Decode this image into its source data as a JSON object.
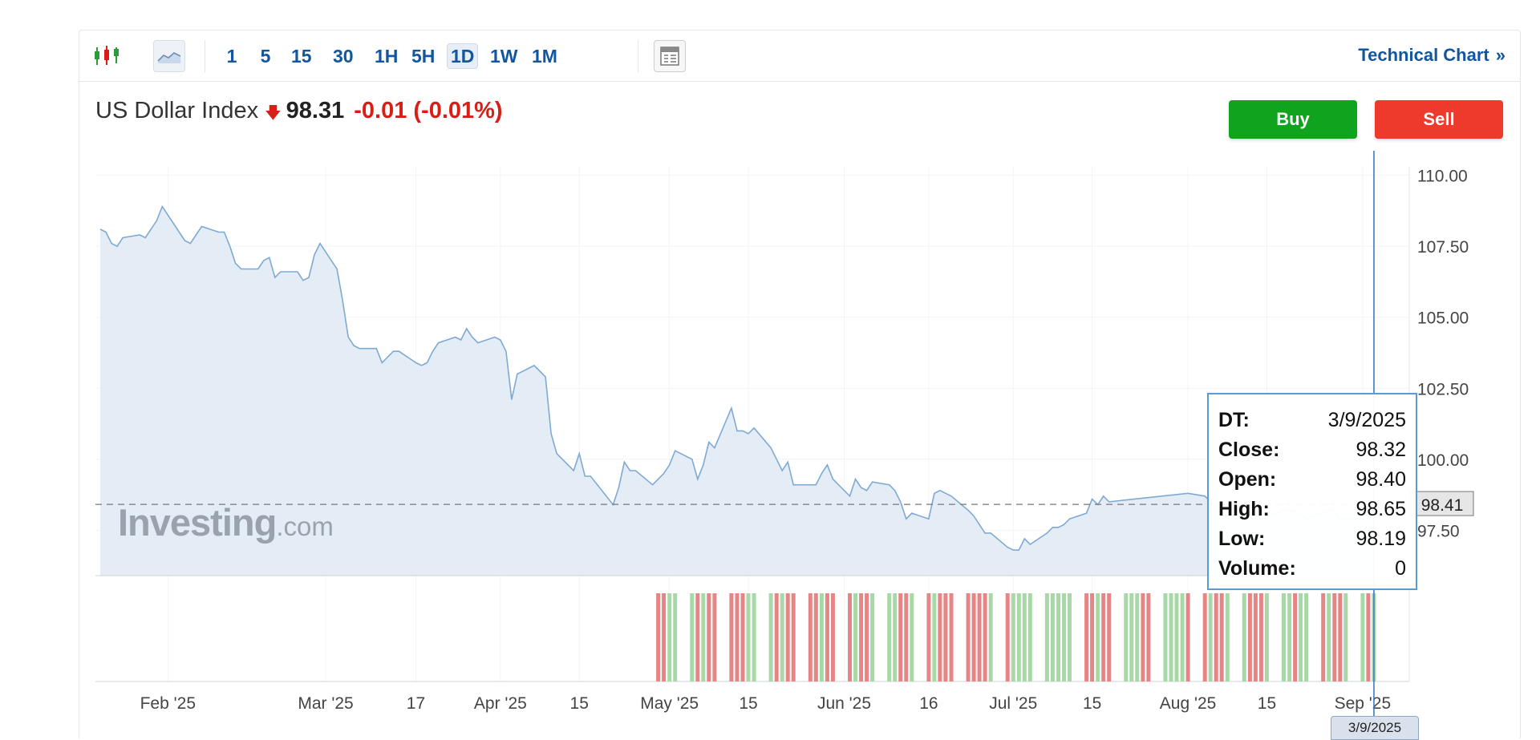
{
  "toolbar": {
    "chart_type_icons": [
      "candlestick-icon",
      "area-chart-icon"
    ],
    "intervals": [
      "1",
      "5",
      "15",
      "30",
      "1H",
      "5H",
      "1D",
      "1W",
      "1M"
    ],
    "active_interval": "1D",
    "layout_icon": "panel-layout-icon",
    "technical_chart_label": "Technical Chart",
    "technical_chart_chevron": "»"
  },
  "quote": {
    "name": "US Dollar Index",
    "direction_icon": "down-arrow-icon",
    "price": "98.31",
    "change": "-0.01 (-0.01%)"
  },
  "buttons": {
    "buy": "Buy",
    "sell": "Sell"
  },
  "tooltip": {
    "rows": [
      {
        "key": "DT:",
        "value": "3/9/2025"
      },
      {
        "key": "Close:",
        "value": "98.32"
      },
      {
        "key": "Open:",
        "value": "98.40"
      },
      {
        "key": "High:",
        "value": "98.65"
      },
      {
        "key": "Low:",
        "value": "98.19"
      },
      {
        "key": "Volume:",
        "value": "0"
      }
    ]
  },
  "watermark": {
    "brand": "Investing",
    "domain": ".com"
  },
  "last_price_label": "98.41",
  "crosshair_date": "3/9/2025",
  "colors": {
    "accent": "#1256a0",
    "down": "#d91e18",
    "buy": "#10a41e",
    "sell": "#ee3a2d",
    "area_line": "#7fa9d3",
    "area_fill": "#e4edf6",
    "volume_up": "#a8d8a8",
    "volume_down": "#e58585"
  },
  "chart_data": {
    "type": "area",
    "title": "US Dollar Index",
    "ylim": [
      95.9,
      110.3
    ],
    "y_ticks": [
      110.0,
      107.5,
      105.0,
      102.5,
      100.0,
      97.5
    ],
    "y_tick_labels": [
      "110.00",
      "107.50",
      "105.00",
      "102.50",
      "100.00",
      "97.50"
    ],
    "x_ticks": [
      "Feb '25",
      "Mar '25",
      "17",
      "Apr '25",
      "15",
      "May '25",
      "15",
      "Jun '25",
      "16",
      "Jul '25",
      "15",
      "Aug '25",
      "15",
      "Sep '25"
    ],
    "x_tick_dates": [
      "2025-02-01",
      "2025-03-01",
      "2025-03-17",
      "2025-04-01",
      "2025-04-15",
      "2025-05-01",
      "2025-05-15",
      "2025-06-01",
      "2025-06-16",
      "2025-07-01",
      "2025-07-15",
      "2025-08-01",
      "2025-08-15",
      "2025-09-01"
    ],
    "x_range": [
      "2025-01-20",
      "2025-09-05"
    ],
    "reference_line": 98.41,
    "series": [
      {
        "values": [
          [
            "2025-01-20",
            108.1
          ],
          [
            "2025-01-21",
            108.0
          ],
          [
            "2025-01-22",
            107.6
          ],
          [
            "2025-01-23",
            107.5
          ],
          [
            "2025-01-24",
            107.8
          ],
          [
            "2025-01-27",
            107.9
          ],
          [
            "2025-01-28",
            107.8
          ],
          [
            "2025-01-29",
            108.1
          ],
          [
            "2025-01-30",
            108.4
          ],
          [
            "2025-01-31",
            108.9
          ],
          [
            "2025-02-03",
            108.0
          ],
          [
            "2025-02-04",
            107.7
          ],
          [
            "2025-02-05",
            107.6
          ],
          [
            "2025-02-06",
            107.9
          ],
          [
            "2025-02-07",
            108.2
          ],
          [
            "2025-02-10",
            108.0
          ],
          [
            "2025-02-11",
            108.0
          ],
          [
            "2025-02-12",
            107.5
          ],
          [
            "2025-02-13",
            106.9
          ],
          [
            "2025-02-14",
            106.7
          ],
          [
            "2025-02-17",
            106.7
          ],
          [
            "2025-02-18",
            107.0
          ],
          [
            "2025-02-19",
            107.1
          ],
          [
            "2025-02-20",
            106.4
          ],
          [
            "2025-02-21",
            106.6
          ],
          [
            "2025-02-24",
            106.6
          ],
          [
            "2025-02-25",
            106.3
          ],
          [
            "2025-02-26",
            106.4
          ],
          [
            "2025-02-27",
            107.2
          ],
          [
            "2025-02-28",
            107.6
          ],
          [
            "2025-03-03",
            106.7
          ],
          [
            "2025-03-04",
            105.6
          ],
          [
            "2025-03-05",
            104.3
          ],
          [
            "2025-03-06",
            104.0
          ],
          [
            "2025-03-07",
            103.9
          ],
          [
            "2025-03-10",
            103.9
          ],
          [
            "2025-03-11",
            103.4
          ],
          [
            "2025-03-12",
            103.6
          ],
          [
            "2025-03-13",
            103.8
          ],
          [
            "2025-03-14",
            103.8
          ],
          [
            "2025-03-17",
            103.4
          ],
          [
            "2025-03-18",
            103.3
          ],
          [
            "2025-03-19",
            103.4
          ],
          [
            "2025-03-20",
            103.8
          ],
          [
            "2025-03-21",
            104.1
          ],
          [
            "2025-03-24",
            104.3
          ],
          [
            "2025-03-25",
            104.2
          ],
          [
            "2025-03-26",
            104.6
          ],
          [
            "2025-03-27",
            104.3
          ],
          [
            "2025-03-28",
            104.1
          ],
          [
            "2025-03-31",
            104.3
          ],
          [
            "2025-04-01",
            104.2
          ],
          [
            "2025-04-02",
            103.8
          ],
          [
            "2025-04-03",
            102.1
          ],
          [
            "2025-04-04",
            103.0
          ],
          [
            "2025-04-07",
            103.3
          ],
          [
            "2025-04-08",
            103.1
          ],
          [
            "2025-04-09",
            102.9
          ],
          [
            "2025-04-10",
            100.9
          ],
          [
            "2025-04-11",
            100.2
          ],
          [
            "2025-04-14",
            99.6
          ],
          [
            "2025-04-15",
            100.2
          ],
          [
            "2025-04-16",
            99.4
          ],
          [
            "2025-04-17",
            99.4
          ],
          [
            "2025-04-21",
            98.4
          ],
          [
            "2025-04-22",
            99.0
          ],
          [
            "2025-04-23",
            99.9
          ],
          [
            "2025-04-24",
            99.6
          ],
          [
            "2025-04-25",
            99.6
          ],
          [
            "2025-04-28",
            99.1
          ],
          [
            "2025-04-29",
            99.3
          ],
          [
            "2025-04-30",
            99.5
          ],
          [
            "2025-05-01",
            99.8
          ],
          [
            "2025-05-02",
            100.3
          ],
          [
            "2025-05-05",
            100.0
          ],
          [
            "2025-05-06",
            99.3
          ],
          [
            "2025-05-07",
            99.8
          ],
          [
            "2025-05-08",
            100.6
          ],
          [
            "2025-05-09",
            100.4
          ],
          [
            "2025-05-12",
            101.8
          ],
          [
            "2025-05-13",
            101.0
          ],
          [
            "2025-05-14",
            101.0
          ],
          [
            "2025-05-15",
            100.9
          ],
          [
            "2025-05-16",
            101.1
          ],
          [
            "2025-05-19",
            100.4
          ],
          [
            "2025-05-20",
            100.0
          ],
          [
            "2025-05-21",
            99.6
          ],
          [
            "2025-05-22",
            99.9
          ],
          [
            "2025-05-23",
            99.1
          ],
          [
            "2025-05-27",
            99.1
          ],
          [
            "2025-05-28",
            99.5
          ],
          [
            "2025-05-29",
            99.8
          ],
          [
            "2025-05-30",
            99.3
          ],
          [
            "2025-06-02",
            98.7
          ],
          [
            "2025-06-03",
            99.3
          ],
          [
            "2025-06-04",
            99.0
          ],
          [
            "2025-06-05",
            98.9
          ],
          [
            "2025-06-06",
            99.2
          ],
          [
            "2025-06-09",
            99.1
          ],
          [
            "2025-06-10",
            98.9
          ],
          [
            "2025-06-11",
            98.5
          ],
          [
            "2025-06-12",
            97.9
          ],
          [
            "2025-06-13",
            98.1
          ],
          [
            "2025-06-16",
            97.9
          ],
          [
            "2025-06-17",
            98.8
          ],
          [
            "2025-06-18",
            98.9
          ],
          [
            "2025-06-19",
            98.8
          ],
          [
            "2025-06-20",
            98.7
          ],
          [
            "2025-06-23",
            98.2
          ],
          [
            "2025-06-24",
            98.0
          ],
          [
            "2025-06-25",
            97.7
          ],
          [
            "2025-06-26",
            97.4
          ],
          [
            "2025-06-27",
            97.4
          ],
          [
            "2025-06-30",
            96.9
          ],
          [
            "2025-07-01",
            96.8
          ],
          [
            "2025-07-02",
            96.8
          ],
          [
            "2025-07-03",
            97.2
          ],
          [
            "2025-07-04",
            97.0
          ],
          [
            "2025-07-07",
            97.4
          ],
          [
            "2025-07-08",
            97.6
          ],
          [
            "2025-07-09",
            97.6
          ],
          [
            "2025-07-10",
            97.7
          ],
          [
            "2025-07-11",
            97.9
          ],
          [
            "2025-07-14",
            98.1
          ],
          [
            "2025-07-15",
            98.6
          ],
          [
            "2025-07-16",
            98.4
          ],
          [
            "2025-07-17",
            98.7
          ],
          [
            "2025-07-18",
            98.5
          ],
          [
            "2025-08-01",
            98.8
          ],
          [
            "2025-08-04",
            98.7
          ],
          [
            "2025-08-06",
            98.3
          ],
          [
            "2025-08-08",
            98.2
          ],
          [
            "2025-08-12",
            98.1
          ],
          [
            "2025-08-14",
            97.9
          ],
          [
            "2025-08-18",
            98.2
          ],
          [
            "2025-08-20",
            98.2
          ],
          [
            "2025-08-22",
            97.9
          ],
          [
            "2025-08-26",
            98.2
          ],
          [
            "2025-08-27",
            98.2
          ],
          [
            "2025-08-28",
            97.9
          ],
          [
            "2025-08-29",
            97.9
          ],
          [
            "2025-09-01",
            97.9
          ],
          [
            "2025-09-02",
            98.3
          ],
          [
            "2025-09-03",
            98.41
          ]
        ]
      }
    ],
    "volume_bars": [
      [
        "2025-04-29",
        "down"
      ],
      [
        "2025-04-30",
        "down"
      ],
      [
        "2025-05-01",
        "up"
      ],
      [
        "2025-05-02",
        "up"
      ],
      [
        "2025-05-05",
        "up"
      ],
      [
        "2025-05-06",
        "down"
      ],
      [
        "2025-05-07",
        "up"
      ],
      [
        "2025-05-08",
        "down"
      ],
      [
        "2025-05-09",
        "down"
      ],
      [
        "2025-05-12",
        "down"
      ],
      [
        "2025-05-13",
        "down"
      ],
      [
        "2025-05-14",
        "down"
      ],
      [
        "2025-05-15",
        "up"
      ],
      [
        "2025-05-16",
        "up"
      ],
      [
        "2025-05-19",
        "up"
      ],
      [
        "2025-05-20",
        "down"
      ],
      [
        "2025-05-21",
        "up"
      ],
      [
        "2025-05-22",
        "down"
      ],
      [
        "2025-05-23",
        "down"
      ],
      [
        "2025-05-26",
        "down"
      ],
      [
        "2025-05-27",
        "down"
      ],
      [
        "2025-05-28",
        "up"
      ],
      [
        "2025-05-29",
        "down"
      ],
      [
        "2025-05-30",
        "down"
      ],
      [
        "2025-06-02",
        "down"
      ],
      [
        "2025-06-03",
        "up"
      ],
      [
        "2025-06-04",
        "down"
      ],
      [
        "2025-06-05",
        "down"
      ],
      [
        "2025-06-06",
        "up"
      ],
      [
        "2025-06-09",
        "up"
      ],
      [
        "2025-06-10",
        "up"
      ],
      [
        "2025-06-11",
        "down"
      ],
      [
        "2025-06-12",
        "down"
      ],
      [
        "2025-06-13",
        "up"
      ],
      [
        "2025-06-16",
        "down"
      ],
      [
        "2025-06-17",
        "up"
      ],
      [
        "2025-06-18",
        "down"
      ],
      [
        "2025-06-19",
        "down"
      ],
      [
        "2025-06-20",
        "down"
      ],
      [
        "2025-06-23",
        "down"
      ],
      [
        "2025-06-24",
        "down"
      ],
      [
        "2025-06-25",
        "down"
      ],
      [
        "2025-06-26",
        "down"
      ],
      [
        "2025-06-27",
        "up"
      ],
      [
        "2025-06-30",
        "down"
      ],
      [
        "2025-07-01",
        "up"
      ],
      [
        "2025-07-02",
        "up"
      ],
      [
        "2025-07-03",
        "up"
      ],
      [
        "2025-07-04",
        "up"
      ],
      [
        "2025-07-07",
        "up"
      ],
      [
        "2025-07-08",
        "up"
      ],
      [
        "2025-07-09",
        "up"
      ],
      [
        "2025-07-10",
        "up"
      ],
      [
        "2025-07-11",
        "up"
      ],
      [
        "2025-07-14",
        "down"
      ],
      [
        "2025-07-15",
        "down"
      ],
      [
        "2025-07-16",
        "up"
      ],
      [
        "2025-07-17",
        "down"
      ],
      [
        "2025-07-18",
        "down"
      ],
      [
        "2025-07-21",
        "up"
      ],
      [
        "2025-07-22",
        "up"
      ],
      [
        "2025-07-23",
        "up"
      ],
      [
        "2025-07-24",
        "down"
      ],
      [
        "2025-07-25",
        "down"
      ],
      [
        "2025-07-28",
        "up"
      ],
      [
        "2025-07-29",
        "up"
      ],
      [
        "2025-07-30",
        "up"
      ],
      [
        "2025-07-31",
        "up"
      ],
      [
        "2025-08-01",
        "down"
      ],
      [
        "2025-08-04",
        "down"
      ],
      [
        "2025-08-05",
        "up"
      ],
      [
        "2025-08-06",
        "down"
      ],
      [
        "2025-08-07",
        "down"
      ],
      [
        "2025-08-08",
        "up"
      ],
      [
        "2025-08-11",
        "up"
      ],
      [
        "2025-08-12",
        "down"
      ],
      [
        "2025-08-13",
        "down"
      ],
      [
        "2025-08-14",
        "down"
      ],
      [
        "2025-08-15",
        "up"
      ],
      [
        "2025-08-18",
        "up"
      ],
      [
        "2025-08-19",
        "up"
      ],
      [
        "2025-08-20",
        "down"
      ],
      [
        "2025-08-21",
        "up"
      ],
      [
        "2025-08-22",
        "up"
      ],
      [
        "2025-08-25",
        "down"
      ],
      [
        "2025-08-26",
        "up"
      ],
      [
        "2025-08-27",
        "down"
      ],
      [
        "2025-08-28",
        "down"
      ],
      [
        "2025-08-29",
        "up"
      ],
      [
        "2025-09-01",
        "up"
      ],
      [
        "2025-09-02",
        "down"
      ],
      [
        "2025-09-03",
        "up"
      ]
    ]
  }
}
